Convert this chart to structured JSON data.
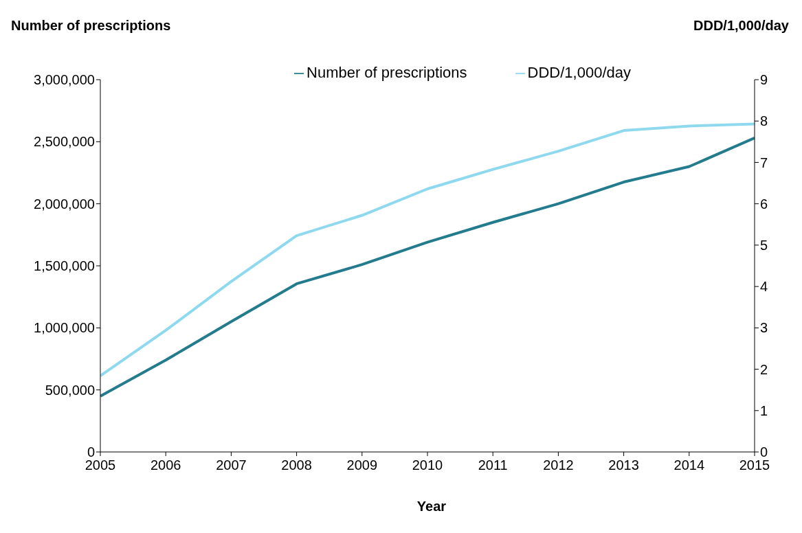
{
  "chart_data": {
    "type": "line",
    "ylabel": "Number of prescriptions",
    "y2label": "DDD/1,000/day",
    "xlabel": "Year",
    "x": [
      2005,
      2006,
      2007,
      2008,
      2009,
      2010,
      2011,
      2012,
      2013,
      2014,
      2015
    ],
    "series": [
      {
        "name": "Number of prescriptions",
        "color": "#237b8e",
        "values": [
          450000,
          740000,
          1050000,
          1355000,
          1510000,
          1690000,
          1850000,
          2000000,
          2175000,
          2300000,
          2530000
        ]
      },
      {
        "name": "DDD/1,000/day",
        "color": "#8fd9ef",
        "axis": "y2",
        "values": [
          1.84,
          2.94,
          4.12,
          5.23,
          5.72,
          6.36,
          6.83,
          7.27,
          7.77,
          7.88,
          7.93
        ]
      }
    ],
    "xlim": [
      2005,
      2015
    ],
    "xticks": [
      2005,
      2006,
      2007,
      2008,
      2009,
      2010,
      2011,
      2012,
      2013,
      2014,
      2015
    ],
    "ylim": [
      0,
      3000000
    ],
    "yticks": [
      0,
      {
        "value": 500000,
        "label": "500,000"
      },
      {
        "value": 1000000,
        "label": "1,000,000"
      },
      {
        "value": 1500000,
        "label": "1,500,000"
      },
      {
        "value": 2000000,
        "label": "2,000,000"
      },
      {
        "value": 2500000,
        "label": "2,500,000"
      },
      {
        "value": 3000000,
        "label": "3,000,000"
      }
    ],
    "y2lim": [
      0,
      9
    ],
    "y2ticks": [
      0,
      1,
      2,
      3,
      4,
      5,
      6,
      7,
      8,
      9
    ],
    "grid": false,
    "legend": "top",
    "marker": "none",
    "line_style": "solid"
  }
}
